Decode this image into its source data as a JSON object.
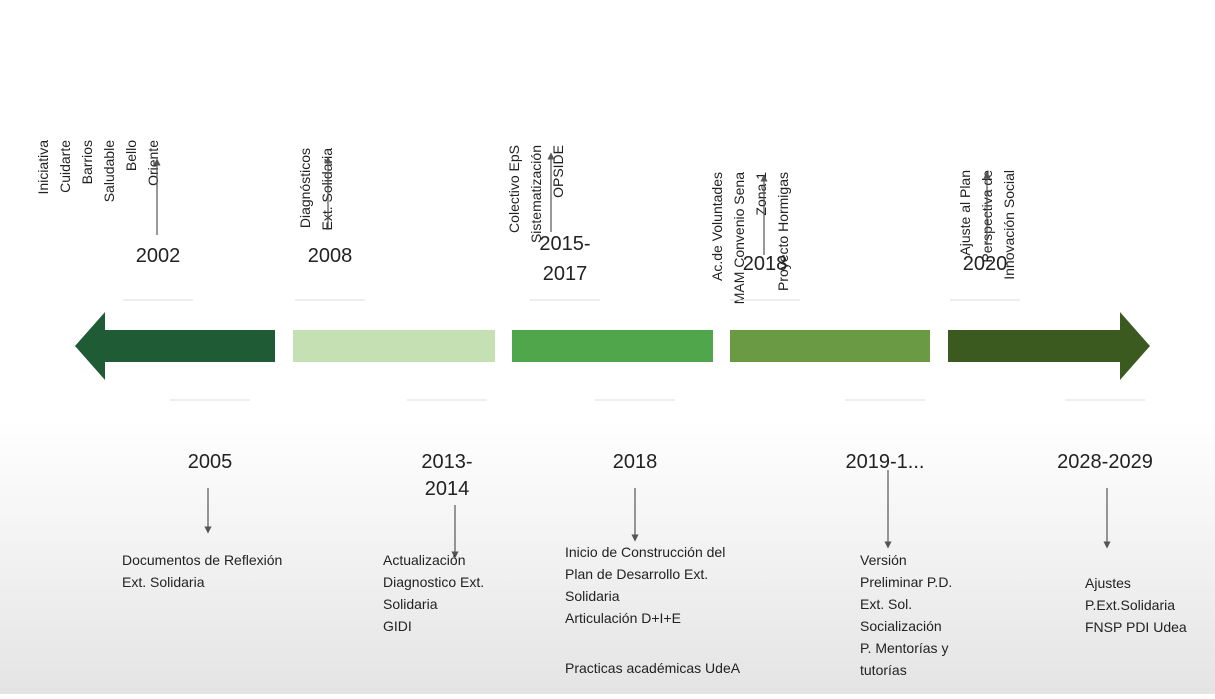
{
  "top_events": [
    {
      "year": [
        "2002"
      ],
      "labels": [
        "Iniciativa",
        "Cuidarte",
        "Barrios",
        "Saludable",
        "Bello",
        "Oriente"
      ]
    },
    {
      "year": [
        "2008"
      ],
      "labels": [
        "Diagnósticos",
        "Ext. Solidaria"
      ]
    },
    {
      "year": [
        "2015-",
        "2017"
      ],
      "labels": [
        "Colectivo EpS",
        "Sistematización",
        "OPSIDE"
      ]
    },
    {
      "year": [
        "2018"
      ],
      "labels": [
        "Ac.de Voluntades",
        "MAM Convenio Sena",
        "Zona 1",
        "Proyecto Hormigas"
      ]
    },
    {
      "year": [
        "2020"
      ],
      "labels": [
        "Ajuste al Plan",
        "Perspectiva de",
        "Innovación Social"
      ]
    }
  ],
  "bottom_events": [
    {
      "year": [
        "2005"
      ],
      "labels": [
        "Documentos de Reflexión",
        "Ext. Solidaria"
      ]
    },
    {
      "year": [
        "2013-",
        "2014"
      ],
      "labels": [
        "Actualización",
        "Diagnostico Ext.",
        "Solidaria",
        "GIDI"
      ]
    },
    {
      "year": [
        "2018"
      ],
      "labels": [
        "Inicio de Construcción del",
        "Plan de Desarrollo Ext.",
        "Solidaria",
        "Articulación D+I+E",
        "Practicas académicas UdeA"
      ]
    },
    {
      "year": [
        "2019-1..."
      ],
      "labels": [
        "Versión",
        "Preliminar P.D.",
        "Ext. Sol.",
        "Socialización",
        "P. Mentorías y",
        "tutorías"
      ]
    },
    {
      "year": [
        "2028-2029"
      ],
      "labels": [
        "Ajustes",
        "P.Ext.Solidaria",
        "FNSP PDI Udea"
      ]
    }
  ]
}
